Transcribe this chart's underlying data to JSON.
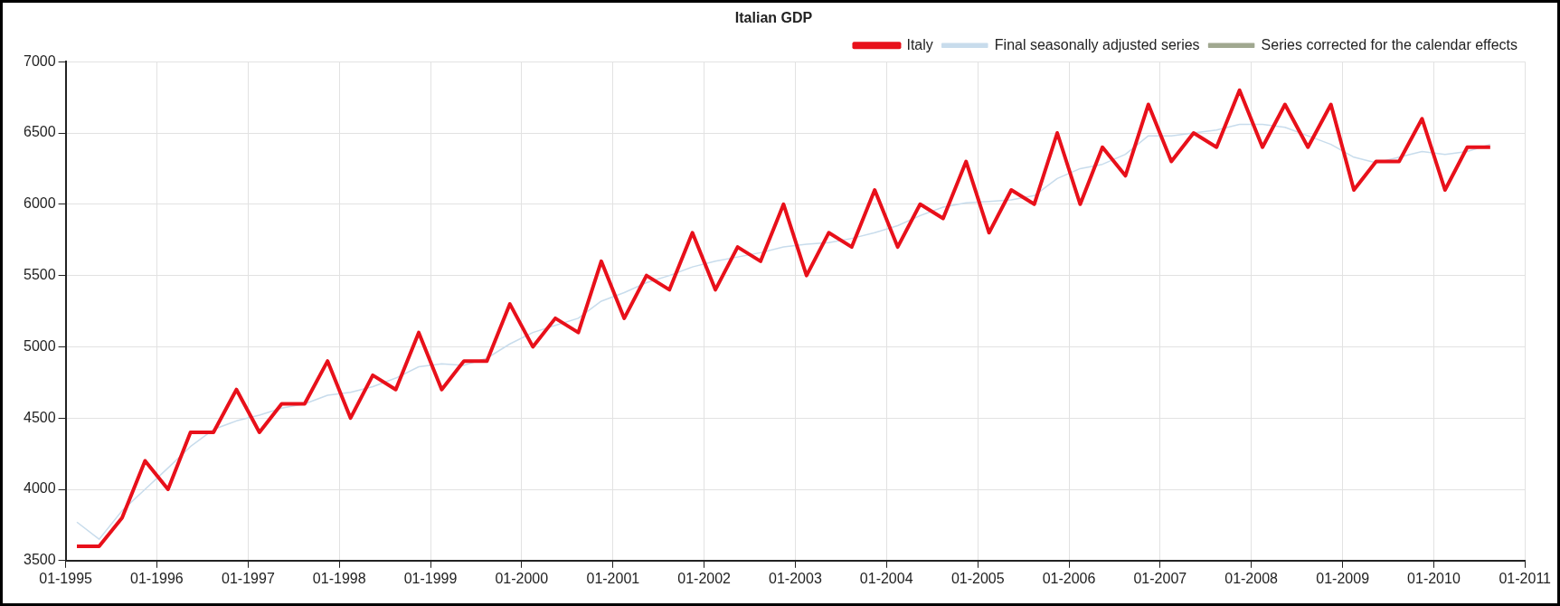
{
  "chart_data": {
    "type": "line",
    "title": "Italian GDP",
    "x": [
      "1995-02-15",
      "1995-05-15",
      "1995-08-15",
      "1995-11-15",
      "1996-02-15",
      "1996-05-15",
      "1996-08-15",
      "1996-11-15",
      "1997-02-15",
      "1997-05-15",
      "1997-08-15",
      "1997-11-15",
      "1998-02-15",
      "1998-05-15",
      "1998-08-15",
      "1998-11-15",
      "1999-02-15",
      "1999-05-15",
      "1999-08-15",
      "1999-11-15",
      "2000-02-15",
      "2000-05-15",
      "2000-08-15",
      "2000-11-15",
      "2001-02-15",
      "2001-05-15",
      "2001-08-15",
      "2001-11-15",
      "2002-02-15",
      "2002-05-15",
      "2002-08-15",
      "2002-11-15",
      "2003-02-15",
      "2003-05-15",
      "2003-08-15",
      "2003-11-15",
      "2004-02-15",
      "2004-05-15",
      "2004-08-15",
      "2004-11-15",
      "2005-02-15",
      "2005-05-15",
      "2005-08-15",
      "2005-11-15",
      "2006-02-15",
      "2006-05-15",
      "2006-08-15",
      "2006-11-15",
      "2007-02-15",
      "2007-05-15",
      "2007-08-15",
      "2007-11-15",
      "2008-02-15",
      "2008-05-15",
      "2008-08-15",
      "2008-11-15",
      "2009-02-15",
      "2009-05-15",
      "2009-08-15",
      "2009-11-15",
      "2010-02-15",
      "2010-05-15",
      "2010-08-15"
    ],
    "series": [
      {
        "name": "Italy",
        "color": "#e8101a",
        "values": [
          3600,
          3600,
          3800,
          4200,
          4000,
          4400,
          4400,
          4700,
          4400,
          4600,
          4600,
          4900,
          4500,
          4800,
          4700,
          5100,
          4700,
          4900,
          4900,
          5300,
          5000,
          5200,
          5100,
          5600,
          5200,
          5500,
          5400,
          5800,
          5400,
          5700,
          5600,
          6000,
          5500,
          5800,
          5700,
          6100,
          5700,
          6000,
          5900,
          6300,
          5800,
          6100,
          6000,
          6500,
          6000,
          6400,
          6200,
          6700,
          6300,
          6500,
          6400,
          6800,
          6400,
          6700,
          6400,
          6700,
          6100,
          6300,
          6300,
          6600,
          6100,
          6400,
          6400
        ]
      },
      {
        "name": "Final seasonally adjusted series",
        "color": "#c8dcec",
        "values": [
          3770,
          3650,
          3850,
          4000,
          4150,
          4300,
          4420,
          4480,
          4520,
          4570,
          4600,
          4660,
          4680,
          4720,
          4780,
          4860,
          4880,
          4870,
          4920,
          5020,
          5100,
          5150,
          5200,
          5320,
          5380,
          5450,
          5500,
          5560,
          5600,
          5630,
          5660,
          5700,
          5720,
          5730,
          5760,
          5800,
          5850,
          5920,
          5980,
          6010,
          6020,
          6030,
          6060,
          6180,
          6250,
          6280,
          6350,
          6480,
          6480,
          6500,
          6520,
          6560,
          6560,
          6540,
          6480,
          6420,
          6330,
          6290,
          6330,
          6370,
          6350,
          6370,
          6420
        ]
      },
      {
        "name": "Series corrected for the calendar effects",
        "color": "#a0a890",
        "values": [
          null,
          null,
          null,
          null,
          null,
          null,
          null,
          null,
          null,
          null,
          null,
          null,
          null,
          null,
          null,
          null,
          null,
          null,
          null,
          null,
          null,
          null,
          null,
          null,
          null,
          null,
          null,
          null,
          null,
          null,
          null,
          null,
          null,
          null,
          null,
          null,
          null,
          null,
          null,
          null,
          null,
          null,
          null,
          null,
          null,
          null,
          null,
          null,
          null,
          null,
          null,
          null,
          null,
          null,
          null,
          null,
          null,
          null,
          null,
          null,
          null,
          null,
          null
        ]
      }
    ],
    "xlim": [
      "1995-01",
      "2011-01"
    ],
    "xticks": [
      {
        "value": "1995-01",
        "label": "01-1995"
      },
      {
        "value": "1996-01",
        "label": "01-1996"
      },
      {
        "value": "1997-01",
        "label": "01-1997"
      },
      {
        "value": "1998-01",
        "label": "01-1998"
      },
      {
        "value": "1999-01",
        "label": "01-1999"
      },
      {
        "value": "2000-01",
        "label": "01-2000"
      },
      {
        "value": "2001-01",
        "label": "01-2001"
      },
      {
        "value": "2002-01",
        "label": "01-2002"
      },
      {
        "value": "2003-01",
        "label": "01-2003"
      },
      {
        "value": "2004-01",
        "label": "01-2004"
      },
      {
        "value": "2005-01",
        "label": "01-2005"
      },
      {
        "value": "2006-01",
        "label": "01-2006"
      },
      {
        "value": "2007-01",
        "label": "01-2007"
      },
      {
        "value": "2008-01",
        "label": "01-2008"
      },
      {
        "value": "2009-01",
        "label": "01-2009"
      },
      {
        "value": "2010-01",
        "label": "01-2010"
      },
      {
        "value": "2011-01",
        "label": "01-2011"
      }
    ],
    "ylim": [
      3500,
      7000
    ],
    "yticks": [
      3500,
      4000,
      4500,
      5000,
      5500,
      6000,
      6500,
      7000
    ],
    "grid": true,
    "legend": "top right",
    "marker": "none",
    "line_style": "solid"
  }
}
